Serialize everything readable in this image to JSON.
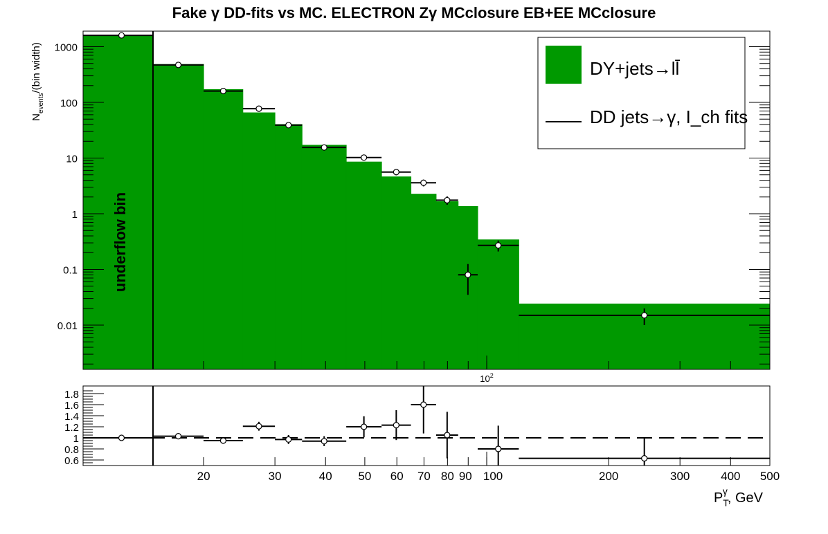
{
  "chart_data": [
    {
      "type": "bar",
      "panel": "main",
      "title": "Fake γ DD-fits vs MC. ELECTRON Zγ  MCclosure EB+EE  MCclosure",
      "ylabel": "N_events/(bin width)",
      "yscale": "log",
      "xscale": "log",
      "y_tick_labels": [
        "0.01",
        "0.1",
        "1",
        "10",
        "100",
        "1000"
      ],
      "x_axis_marker": "10^2",
      "annotation": "underflow bin",
      "legend": {
        "placement": "top-right",
        "entries": [
          "DY+jets→ll̄",
          "DD jets→γ, I_ch fits"
        ]
      },
      "bins": [
        {
          "lo": "underflow",
          "hi": 15,
          "mc": 1600,
          "dd": 1600,
          "dd_err": 30
        },
        {
          "lo": 15,
          "hi": 20,
          "mc": 480,
          "dd": 470,
          "dd_err": 15
        },
        {
          "lo": 20,
          "hi": 25,
          "mc": 170,
          "dd": 160,
          "dd_err": 7
        },
        {
          "lo": 25,
          "hi": 30,
          "mc": 65,
          "dd": 77,
          "dd_err": 5
        },
        {
          "lo": 30,
          "hi": 35,
          "mc": 40,
          "dd": 39,
          "dd_err": 3
        },
        {
          "lo": 35,
          "hi": 45,
          "mc": 17,
          "dd": 15.5,
          "dd_err": 1.5
        },
        {
          "lo": 45,
          "hi": 55,
          "mc": 8.5,
          "dd": 10.2,
          "dd_err": 1.0
        },
        {
          "lo": 55,
          "hi": 65,
          "mc": 4.6,
          "dd": 5.6,
          "dd_err": 0.7
        },
        {
          "lo": 65,
          "hi": 75,
          "mc": 2.25,
          "dd": 3.6,
          "dd_err": 0.5
        },
        {
          "lo": 75,
          "hi": 85,
          "mc": 1.65,
          "dd": 1.75,
          "dd_err": 0.3
        },
        {
          "lo": 85,
          "hi": 95,
          "mc": 1.35,
          "dd": 0.08,
          "dd_err": 0.045
        },
        {
          "lo": 95,
          "hi": 120,
          "mc": 0.34,
          "dd": 0.27,
          "dd_err": 0.06
        },
        {
          "lo": 120,
          "hi": 500,
          "mc": 0.024,
          "dd": 0.015,
          "dd_err": 0.005
        }
      ]
    },
    {
      "type": "scatter",
      "panel": "ratio",
      "xlabel": "P_T^γ, GeV",
      "x_tick_labels": [
        "20",
        "30",
        "40",
        "50",
        "60",
        "70",
        "80",
        "90",
        "100",
        "200",
        "300",
        "400",
        "500"
      ],
      "y_tick_labels": [
        "0.6",
        "0.8",
        "1",
        "1.2",
        "1.4",
        "1.6",
        "1.8"
      ],
      "ylim": [
        0.53,
        1.9
      ],
      "reference_line": 1.0,
      "points": [
        {
          "lo": "underflow",
          "hi": 15,
          "y": 1.0,
          "err": 0.02
        },
        {
          "lo": 15,
          "hi": 20,
          "y": 1.03,
          "err": 0.03
        },
        {
          "lo": 20,
          "hi": 25,
          "y": 0.95,
          "err": 0.04
        },
        {
          "lo": 25,
          "hi": 30,
          "y": 1.21,
          "err": 0.08
        },
        {
          "lo": 30,
          "hi": 35,
          "y": 0.97,
          "err": 0.08
        },
        {
          "lo": 35,
          "hi": 45,
          "y": 0.94,
          "err": 0.09
        },
        {
          "lo": 45,
          "hi": 55,
          "y": 1.2,
          "err": 0.19
        },
        {
          "lo": 55,
          "hi": 65,
          "y": 1.23,
          "err": 0.27
        },
        {
          "lo": 65,
          "hi": 75,
          "y": 1.6,
          "err": 0.52
        },
        {
          "lo": 75,
          "hi": 85,
          "y": 1.05,
          "err": 0.42
        },
        {
          "lo": 95,
          "hi": 120,
          "y": 0.8,
          "err": 0.42
        },
        {
          "lo": 120,
          "hi": 500,
          "y": 0.63,
          "err": 0.37
        }
      ]
    }
  ],
  "colors": {
    "mc_fill": "#009900",
    "points": "#000000",
    "marker_fill": "#ffffff"
  }
}
